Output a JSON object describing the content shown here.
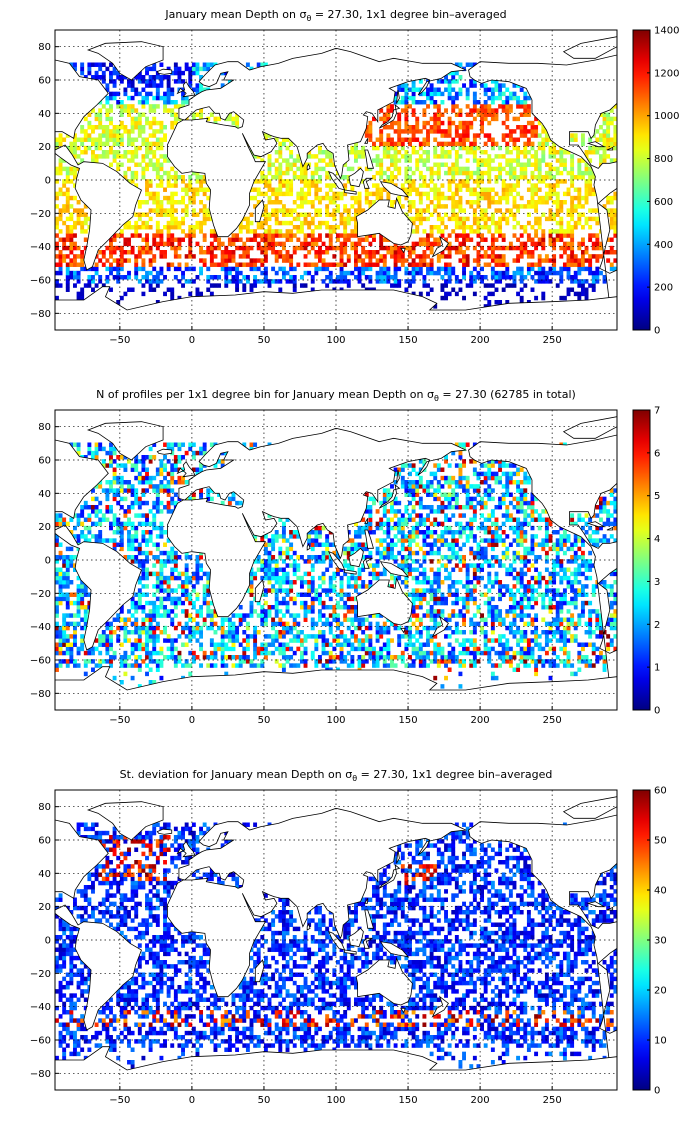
{
  "chart_data": [
    {
      "type": "heatmap",
      "title": {
        "pre": "January mean Depth on ",
        "sym": "σ",
        "sub": "θ",
        "post": " = 27.30, 1x1 degree bin–averaged"
      },
      "xticks": [
        -50,
        0,
        50,
        100,
        150,
        200,
        250
      ],
      "yticks": [
        80,
        60,
        40,
        20,
        0,
        -20,
        -40,
        -60,
        -80
      ],
      "xlim": [
        -95,
        295
      ],
      "ylim": [
        -90,
        90
      ],
      "grid": true,
      "colorbar": {
        "min": 0,
        "max": 1400,
        "ticks": [
          0,
          200,
          400,
          600,
          800,
          1000,
          1200,
          1400
        ]
      }
    },
    {
      "type": "heatmap",
      "title": {
        "pre": "N of profiles per 1x1 degree bin for January mean Depth on ",
        "sym": "σ",
        "sub": "θ",
        "post": " = 27.30 (62785 in total)"
      },
      "xticks": [
        -50,
        0,
        50,
        100,
        150,
        200,
        250
      ],
      "yticks": [
        80,
        60,
        40,
        20,
        0,
        -20,
        -40,
        -60,
        -80
      ],
      "xlim": [
        -95,
        295
      ],
      "ylim": [
        -90,
        90
      ],
      "grid": true,
      "colorbar": {
        "min": 0,
        "max": 7,
        "ticks": [
          0,
          1,
          2,
          3,
          4,
          5,
          6,
          7
        ]
      }
    },
    {
      "type": "heatmap",
      "title": {
        "pre": "St. deviation for January mean Depth on ",
        "sym": "σ",
        "sub": "θ",
        "post": " = 27.30, 1x1 degree bin–averaged"
      },
      "xticks": [
        -50,
        0,
        50,
        100,
        150,
        200,
        250
      ],
      "yticks": [
        80,
        60,
        40,
        20,
        0,
        -20,
        -40,
        -60,
        -80
      ],
      "xlim": [
        -95,
        295
      ],
      "ylim": [
        -90,
        90
      ],
      "grid": true,
      "colorbar": {
        "min": 0,
        "max": 60,
        "ticks": [
          0,
          10,
          20,
          30,
          40,
          50,
          60
        ]
      }
    }
  ]
}
